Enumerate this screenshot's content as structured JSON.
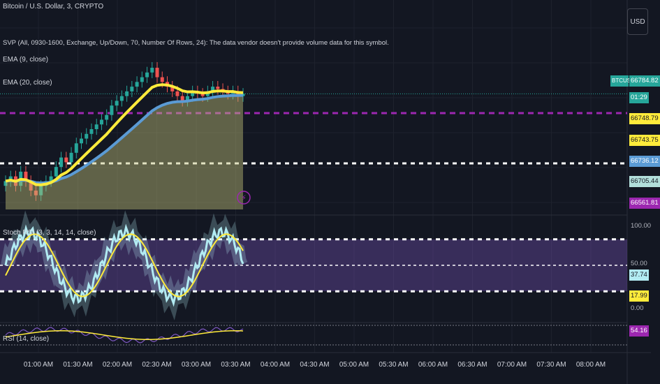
{
  "symbol_title": "Bitcoin / U.S. Dollar, 3, CRYPTO",
  "svp_legend": "SVP (All, 0930-1600, Exchange, Up/Down, 70, Number Of Rows, 24): The data vendor doesn't provide volume data for this symbol.",
  "ema9_legend": "EMA (9, close)",
  "ema20_legend": "EMA (20, close)",
  "stoch_legend": "Stoch RSI (3, 3, 14, 14, close)",
  "rsi_legend": "RSI (14, close)",
  "currency": "USD",
  "colors": {
    "background": "#131722",
    "up": "#26a69a",
    "down": "#ef5350",
    "ema9": "#ffeb3b",
    "ema20": "#5b9bd5",
    "purple": "#9c27b0",
    "stoch_k": "#b2ebf2",
    "stoch_d": "#ffeb3b"
  },
  "price_tags": {
    "symbol": "BTCUSD",
    "last": "66784.82",
    "countdown": "01:29",
    "t1": "66748.79",
    "t2": "66743.75",
    "t3": "66736.12",
    "t4": "66705.44",
    "t5": "66561.81"
  },
  "stoch_axis": {
    "top": "100.00",
    "mid": "50.00",
    "k": "37.74",
    "d": "17.99",
    "bottom": "0.00"
  },
  "rsi_value": "54.16",
  "time_labels": [
    "01:00 AM",
    "01:30 AM",
    "02:00 AM",
    "02:30 AM",
    "03:00 AM",
    "03:30 AM",
    "04:00 AM",
    "04:30 AM",
    "05:00 AM",
    "05:30 AM",
    "06:00 AM",
    "06:30 AM",
    "07:00 AM",
    "07:30 AM",
    "08:00 AM"
  ],
  "chart_data": {
    "type": "candlestick",
    "price_levels": {
      "last": 66784.82,
      "ema9": 66748.79,
      "ema20": 66736.12,
      "purple_dashed": 66743.75,
      "white_dashed": 66705.44,
      "lower": 66561.81
    },
    "candles_sketch_close": [
      66600,
      66610,
      66590,
      66620,
      66600,
      66580,
      66570,
      66590,
      66600,
      66610,
      66630,
      66650,
      66640,
      66660,
      66680,
      66690,
      66700,
      66710,
      66720,
      66730,
      66740,
      66760,
      66770,
      66780,
      66790,
      66800,
      66810,
      66820,
      66830,
      66840,
      66820,
      66810,
      66800,
      66790,
      66780,
      66770,
      66780,
      66790,
      66785,
      66780,
      66790,
      66800,
      66795,
      66790,
      66785,
      66790,
      66780,
      66785
    ],
    "stoch_rsi": {
      "upper_band": 80,
      "middle": 50,
      "lower_band": 20,
      "k": 37.74,
      "d": 17.99
    },
    "rsi": {
      "value": 54.16
    }
  }
}
